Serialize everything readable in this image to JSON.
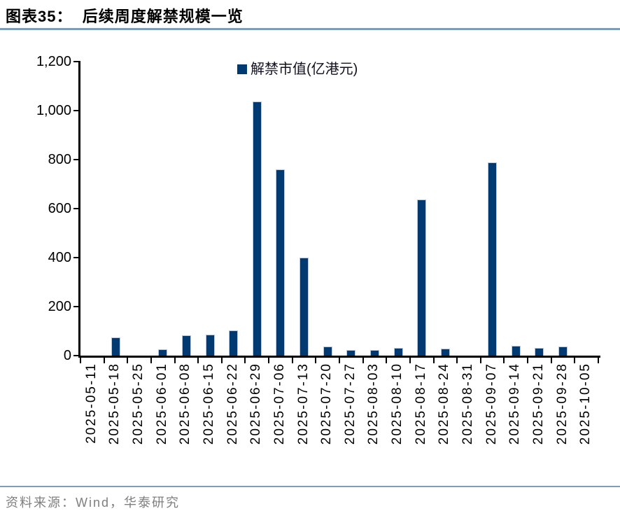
{
  "header": {
    "title": "图表35：  后续周度解禁规模一览"
  },
  "chart_data": {
    "type": "bar",
    "title": "后续周度解禁规模一览",
    "legend": [
      "解禁市值(亿港元)"
    ],
    "legend_position": "top-center",
    "categories": [
      "2025-05-11",
      "2025-05-18",
      "2025-05-25",
      "2025-06-01",
      "2025-06-08",
      "2025-06-15",
      "2025-06-22",
      "2025-06-29",
      "2025-07-06",
      "2025-07-13",
      "2025-07-20",
      "2025-07-27",
      "2025-08-03",
      "2025-08-10",
      "2025-08-17",
      "2025-08-24",
      "2025-08-31",
      "2025-09-07",
      "2025-09-14",
      "2025-09-21",
      "2025-09-28",
      "2025-10-05"
    ],
    "values": [
      0,
      75,
      0,
      26,
      83,
      86,
      103,
      1037,
      760,
      400,
      37,
      23,
      22,
      31,
      637,
      29,
      0,
      789,
      40,
      31,
      37,
      0
    ],
    "xlabel": "",
    "ylabel": "",
    "ylim": [
      0,
      1200
    ],
    "yticks": [
      0,
      200,
      400,
      600,
      800,
      1000,
      1200
    ],
    "ytick_labels": [
      "0",
      "200",
      "400",
      "600",
      "800",
      "1,000",
      "1,200"
    ],
    "grid": false,
    "bar_color": "#003a70",
    "bar_edge_color": "#b7c9e2"
  },
  "colors": {
    "rule": "#7f9db9",
    "axis": "#000000",
    "source_text": "#7f7f7f"
  },
  "footer": {
    "source": "资料来源：Wind，华泰研究"
  }
}
